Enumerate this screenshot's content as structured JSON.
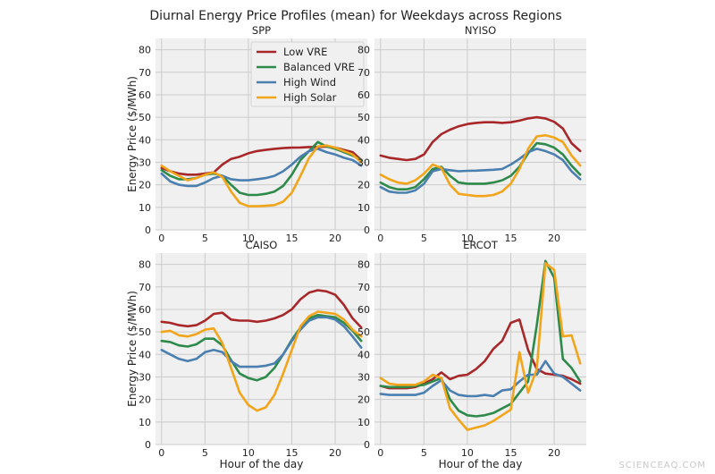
{
  "figure_title": "Diurnal Energy Price Profiles (mean) for Weekdays across Regions",
  "watermark": "SCIENCEAQ.COM",
  "colors": {
    "Low VRE": "#a8282a",
    "Balanced VRE": "#2e8a4a",
    "High Wind": "#4a7fb0",
    "High Solar": "#f2a51a"
  },
  "chart_data": [
    {
      "type": "line",
      "title": "SPP",
      "xlabel": "",
      "ylabel": "Energy Price ($/MWh)",
      "xlim": [
        -0.7,
        23.7
      ],
      "ylim": [
        0,
        85
      ],
      "xticks": [
        0,
        5,
        10,
        15,
        20
      ],
      "yticks": [
        0,
        10,
        20,
        30,
        40,
        50,
        60,
        70,
        80
      ],
      "grid": true,
      "legend": "top-center",
      "x": [
        0,
        1,
        2,
        3,
        4,
        5,
        6,
        7,
        8,
        9,
        10,
        11,
        12,
        13,
        14,
        15,
        16,
        17,
        18,
        19,
        20,
        21,
        22,
        23
      ],
      "series": [
        {
          "name": "Low VRE",
          "values": [
            27.5,
            26,
            25,
            24.5,
            24.5,
            25,
            25.5,
            29,
            31.5,
            32.5,
            34,
            35,
            35.5,
            36,
            36.3,
            36.5,
            36.6,
            36.8,
            36.8,
            37,
            36.5,
            35.5,
            34.5,
            31
          ]
        },
        {
          "name": "Balanced VRE",
          "values": [
            26.5,
            24,
            22.5,
            22.5,
            23,
            24.5,
            25,
            24,
            20,
            16.5,
            15.5,
            15.5,
            16,
            17,
            19.5,
            24.5,
            31,
            35,
            39,
            37,
            36,
            34.5,
            33,
            31
          ]
        },
        {
          "name": "High Wind",
          "values": [
            25,
            21.5,
            20,
            19.5,
            19.5,
            21,
            23,
            24,
            22.5,
            22,
            22,
            22.5,
            23,
            24,
            26,
            29,
            32.5,
            35,
            36,
            34.5,
            33.5,
            32,
            31,
            28.5
          ]
        },
        {
          "name": "High Solar",
          "values": [
            28.5,
            26,
            24,
            22,
            23,
            24.5,
            25.5,
            23.5,
            17,
            12,
            10.5,
            10.5,
            10.7,
            11,
            12.5,
            16.5,
            24,
            32,
            37,
            37.5,
            36.5,
            35,
            33.5,
            30
          ]
        }
      ]
    },
    {
      "type": "line",
      "title": "NYISO",
      "xlabel": "",
      "ylabel": "",
      "xlim": [
        -0.7,
        23.7
      ],
      "ylim": [
        0,
        85
      ],
      "xticks": [
        0,
        5,
        10,
        15,
        20
      ],
      "yticks": [
        0,
        10,
        20,
        30,
        40,
        50,
        60,
        70,
        80
      ],
      "grid": true,
      "x": [
        0,
        1,
        2,
        3,
        4,
        5,
        6,
        7,
        8,
        9,
        10,
        11,
        12,
        13,
        14,
        15,
        16,
        17,
        18,
        19,
        20,
        21,
        22,
        23
      ],
      "series": [
        {
          "name": "Low VRE",
          "values": [
            33,
            32,
            31.5,
            31,
            31.5,
            33.5,
            39,
            42.5,
            44.5,
            46,
            47,
            47.5,
            47.8,
            47.8,
            47.5,
            47.8,
            48.5,
            49.5,
            50,
            49.5,
            48,
            45,
            38.5,
            35
          ]
        },
        {
          "name": "Balanced VRE",
          "values": [
            21,
            19,
            18,
            18,
            19,
            22.5,
            27,
            28,
            24,
            21,
            20.5,
            20.5,
            20.5,
            21,
            22,
            24,
            28,
            34,
            38.5,
            38,
            36.5,
            33.5,
            28.5,
            24.5
          ]
        },
        {
          "name": "High Wind",
          "values": [
            19,
            17,
            16.5,
            16.5,
            17.5,
            20.5,
            26,
            27,
            26.5,
            26,
            26.2,
            26.3,
            26.5,
            26.7,
            27,
            29,
            31.5,
            34.5,
            36,
            35,
            33.5,
            31,
            26,
            22.5
          ]
        },
        {
          "name": "High Solar",
          "values": [
            24.5,
            22.5,
            21,
            20.5,
            22,
            25,
            29,
            27.5,
            20,
            16,
            15.5,
            15,
            15,
            15.5,
            17,
            20.5,
            27,
            36,
            41.5,
            42,
            41,
            39,
            33,
            28.5
          ]
        }
      ]
    },
    {
      "type": "line",
      "title": "CAISO",
      "xlabel": "Hour of the day",
      "ylabel": "Energy Price ($/MWh)",
      "xlim": [
        -0.7,
        23.7
      ],
      "ylim": [
        0,
        85
      ],
      "xticks": [
        0,
        5,
        10,
        15,
        20
      ],
      "yticks": [
        0,
        10,
        20,
        30,
        40,
        50,
        60,
        70,
        80
      ],
      "grid": true,
      "x": [
        0,
        1,
        2,
        3,
        4,
        5,
        6,
        7,
        8,
        9,
        10,
        11,
        12,
        13,
        14,
        15,
        16,
        17,
        18,
        19,
        20,
        21,
        22,
        23
      ],
      "series": [
        {
          "name": "Low VRE",
          "values": [
            54.5,
            54,
            53,
            52.5,
            53,
            55,
            58,
            58.5,
            55.5,
            55,
            55,
            54.5,
            55,
            56,
            57.5,
            60,
            64.5,
            67.5,
            68.5,
            68,
            66.5,
            62,
            56,
            52
          ]
        },
        {
          "name": "Balanced VRE",
          "values": [
            46,
            45.5,
            44,
            43.5,
            44.5,
            47,
            47,
            44,
            37.5,
            31.5,
            29.5,
            28.5,
            30,
            34,
            40,
            46.5,
            52,
            56,
            57.5,
            57,
            56.5,
            54,
            50.5,
            46
          ]
        },
        {
          "name": "High Wind",
          "values": [
            42,
            40,
            38,
            37,
            38,
            41,
            42,
            41,
            37,
            34.5,
            34.5,
            34.5,
            35,
            36,
            40,
            46,
            51,
            55,
            56.5,
            56.5,
            55.5,
            52.5,
            48,
            43
          ]
        },
        {
          "name": "High Solar",
          "values": [
            50,
            50.5,
            48.5,
            48,
            49,
            51,
            51.5,
            45,
            34,
            23,
            17.5,
            15,
            16.5,
            22,
            31.5,
            42,
            52.5,
            57,
            59,
            58.5,
            58,
            55.5,
            51,
            48
          ]
        }
      ]
    },
    {
      "type": "line",
      "title": "ERCOT",
      "xlabel": "Hour of the day",
      "ylabel": "",
      "xlim": [
        -0.7,
        23.7
      ],
      "ylim": [
        0,
        85
      ],
      "xticks": [
        0,
        5,
        10,
        15,
        20
      ],
      "yticks": [
        0,
        10,
        20,
        30,
        40,
        50,
        60,
        70,
        80
      ],
      "grid": true,
      "x": [
        0,
        1,
        2,
        3,
        4,
        5,
        6,
        7,
        8,
        9,
        10,
        11,
        12,
        13,
        14,
        15,
        16,
        17,
        18,
        19,
        20,
        21,
        22,
        23
      ],
      "series": [
        {
          "name": "Low VRE",
          "values": [
            26,
            25,
            25,
            25,
            25.5,
            27,
            29,
            32,
            29,
            30.5,
            31,
            33.5,
            37,
            42.5,
            46,
            54,
            55.5,
            42,
            33.5,
            31.5,
            31,
            30.5,
            29,
            27
          ]
        },
        {
          "name": "Balanced VRE",
          "values": [
            26,
            25.5,
            25.5,
            25.5,
            26,
            26.5,
            28,
            29.5,
            20,
            15,
            13,
            12.5,
            13,
            14,
            16,
            18,
            23,
            28,
            53,
            81.5,
            74,
            38,
            34,
            28
          ]
        },
        {
          "name": "High Wind",
          "values": [
            22.5,
            22,
            22,
            22,
            22,
            23,
            26,
            28.5,
            24,
            22,
            21.5,
            21.5,
            22,
            21.5,
            24,
            24.5,
            28,
            31,
            31,
            37,
            31.5,
            30,
            27,
            24
          ]
        },
        {
          "name": "High Solar",
          "values": [
            29.5,
            27,
            26.5,
            26.5,
            26.5,
            28,
            31,
            29.5,
            16,
            11,
            6.5,
            7.5,
            8.5,
            10.5,
            13,
            15.5,
            41,
            23,
            33.5,
            80.5,
            77.5,
            48,
            48.5,
            36
          ]
        }
      ]
    }
  ]
}
